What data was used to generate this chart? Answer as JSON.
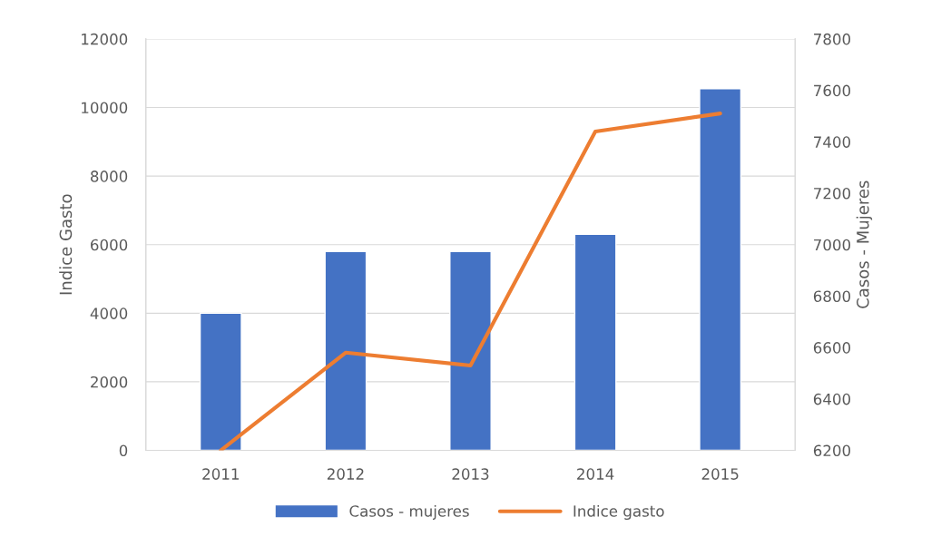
{
  "chart_data": {
    "type": "bar",
    "categories": [
      "2011",
      "2012",
      "2013",
      "2014",
      "2015"
    ],
    "ylabel": "Indice Gasto",
    "y2label": "Casos - Mujeres",
    "series": [
      {
        "name": "Casos - mujeres",
        "color": "#4472c4",
        "values": [
          4000,
          5800,
          5800,
          6300,
          10550
        ]
      },
      {
        "name": "Indice gasto",
        "type": "line",
        "axis": "y2",
        "color": "#ed7d31",
        "values": [
          6200,
          6580,
          6530,
          7440,
          7510
        ]
      }
    ],
    "ylim": [
      0,
      12000
    ],
    "yticks": [
      0,
      2000,
      4000,
      6000,
      8000,
      10000,
      12000
    ],
    "y2lim": [
      6200,
      7800
    ],
    "y2ticks": [
      6200,
      6400,
      6600,
      6800,
      7000,
      7200,
      7400,
      7600,
      7800
    ],
    "grid": "y",
    "legend": "bottom",
    "marker": "none",
    "line_style": "solid"
  }
}
